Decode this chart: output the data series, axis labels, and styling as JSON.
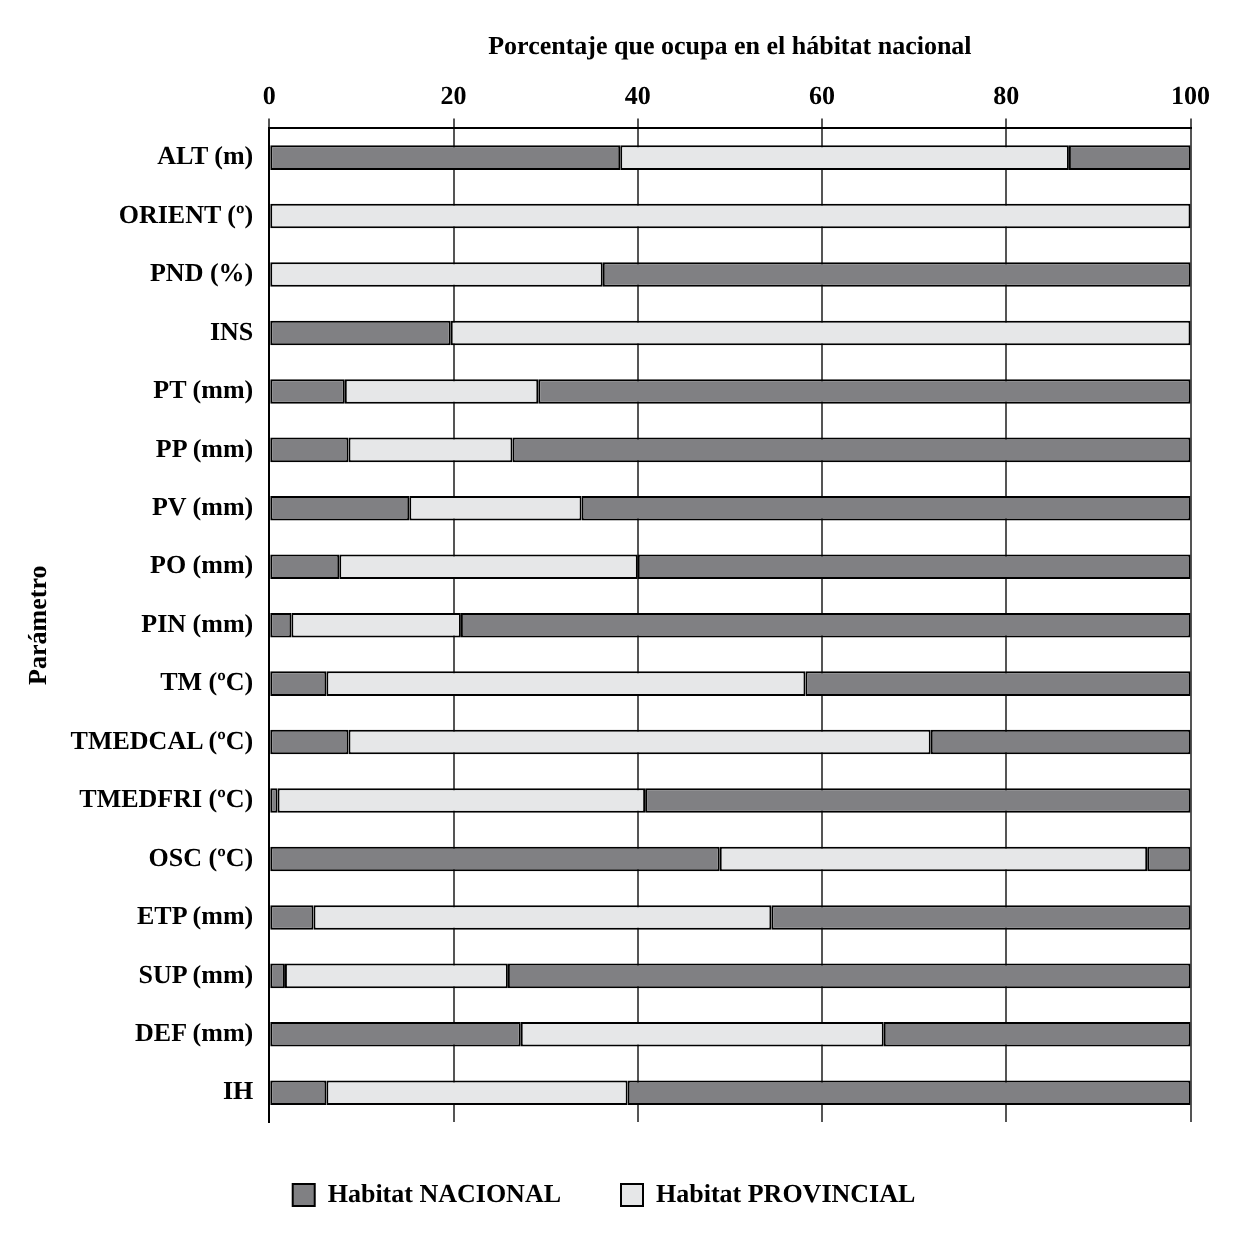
{
  "chart_data": {
    "type": "bar",
    "orientation": "horizontal",
    "stacked": true,
    "xlabel": "Porcentaje que ocupa en el hábitat nacional",
    "ylabel": "Parámetro",
    "categories": [
      "ALT (m)",
      "ORIENT (º)",
      "PND (%)",
      "INS",
      "PT (mm)",
      "PP (mm)",
      "PV (mm)",
      "PO (mm)",
      "PIN (mm)",
      "TM (ºC)",
      "TMEDCAL (ºC)",
      "TMEDFRI (ºC)",
      "OSC (ºC)",
      "ETP (mm)",
      "SUP (mm)",
      "DEF (mm)",
      "IH"
    ],
    "series": [
      {
        "name": "Habitat NACIONAL",
        "color": "#808083",
        "values": [
          38.1,
          0,
          0,
          19.7,
          8.2,
          8.6,
          15.2,
          7.6,
          2.4,
          6.2,
          8.6,
          0.9,
          48.9,
          4.8,
          1.7,
          27.3,
          6.2
        ]
      },
      {
        "name": "Habitat PROVINCIAL",
        "color": "#e6e7e8",
        "values": [
          48.7,
          100,
          36.2,
          80.3,
          21,
          17.8,
          18.7,
          32.4,
          18.4,
          52,
          63.2,
          39.9,
          46.4,
          49.7,
          24.2,
          39.4,
          32.7
        ]
      },
      {
        "color": "#808083",
        "values": [
          13.2,
          0,
          63.8,
          0,
          70.8,
          73.6,
          66.1,
          60,
          79.2,
          41.8,
          28.2,
          59.2,
          4.7,
          45.5,
          74.1,
          33.3,
          61.1
        ]
      }
    ],
    "xlim": [
      0,
      100
    ],
    "xticks": [
      0,
      20,
      40,
      60,
      80,
      100
    ],
    "grid": "x",
    "legend": "bottom"
  }
}
